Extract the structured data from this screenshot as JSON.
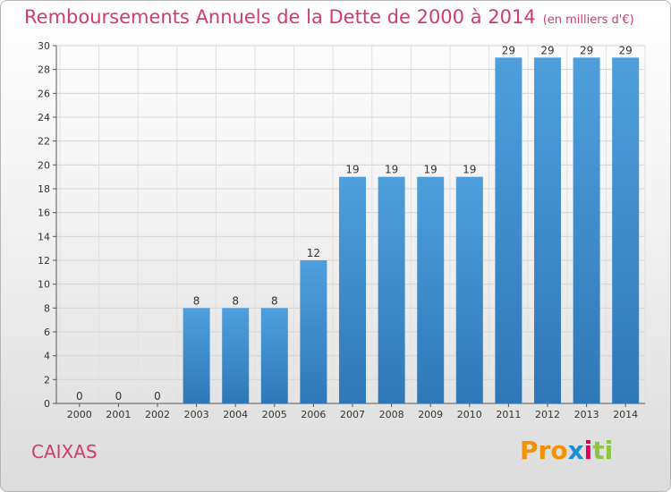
{
  "chart_data": {
    "type": "bar",
    "title": "Remboursements Annuels de la Dette de 2000 à 2014",
    "unit_label": "(en milliers d'€)",
    "categories": [
      "2000",
      "2001",
      "2002",
      "2003",
      "2004",
      "2005",
      "2006",
      "2007",
      "2008",
      "2009",
      "2010",
      "2011",
      "2012",
      "2013",
      "2014"
    ],
    "values": [
      0,
      0,
      0,
      8,
      8,
      8,
      12,
      19,
      19,
      19,
      19,
      29,
      29,
      29,
      29
    ],
    "ylim": [
      0,
      30
    ],
    "yticks": [
      0,
      2,
      4,
      6,
      8,
      10,
      12,
      14,
      16,
      18,
      20,
      22,
      24,
      26,
      28,
      30
    ],
    "xlabel": "",
    "ylabel": "",
    "grid": true,
    "bar_color": "#4f9fdd",
    "bar_color_dark": "#2f78b8"
  },
  "commune": "CAIXAS",
  "logo": {
    "text_a": "Pro",
    "text_b": "x",
    "text_c": "i",
    "text_d": "ti"
  }
}
